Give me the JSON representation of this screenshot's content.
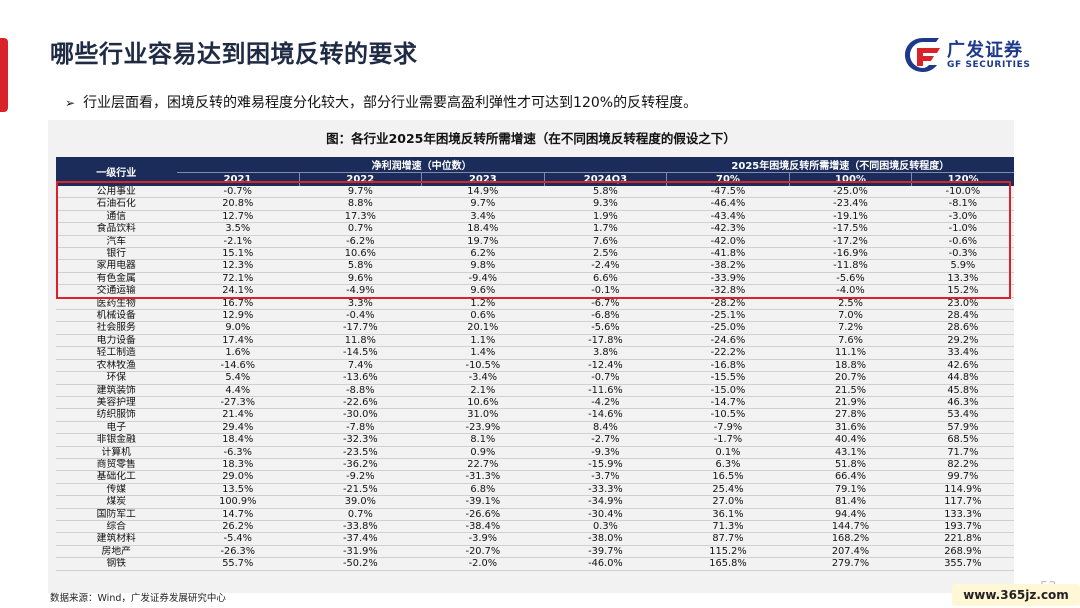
{
  "header": {
    "title": "哪些行业容易达到困境反转的要求",
    "logo_cn": "广发证券",
    "logo_en": "GF SECURITIES"
  },
  "bullet": {
    "marker": "➢",
    "text": "行业层面看，困境反转的难易程度分化较大，部分行业需要高盈利弹性才可达到120%的反转程度。"
  },
  "table": {
    "title": "图：各行业2025年困境反转所需增速（在不同困境反转程度的假设之下）",
    "col_industry": "一级行业",
    "group1": "净利润增速（中位数）",
    "group2": "2025年困境反转所需增速（不同困境反转程度）",
    "columns": [
      "2021",
      "2022",
      "2023",
      "2024Q3",
      "70%",
      "100%",
      "120%"
    ],
    "rows": [
      {
        "name": "公用事业",
        "values": [
          "-0.7%",
          "9.7%",
          "14.9%",
          "5.8%",
          "-47.5%",
          "-25.0%",
          "-10.0%"
        ]
      },
      {
        "name": "石油石化",
        "values": [
          "20.8%",
          "8.8%",
          "9.7%",
          "9.3%",
          "-46.4%",
          "-23.4%",
          "-8.1%"
        ]
      },
      {
        "name": "通信",
        "values": [
          "12.7%",
          "17.3%",
          "3.4%",
          "1.9%",
          "-43.4%",
          "-19.1%",
          "-3.0%"
        ]
      },
      {
        "name": "食品饮料",
        "values": [
          "3.5%",
          "0.7%",
          "18.4%",
          "1.7%",
          "-42.3%",
          "-17.5%",
          "-1.0%"
        ]
      },
      {
        "name": "汽车",
        "values": [
          "-2.1%",
          "-6.2%",
          "19.7%",
          "7.6%",
          "-42.0%",
          "-17.2%",
          "-0.6%"
        ]
      },
      {
        "name": "银行",
        "values": [
          "15.1%",
          "10.6%",
          "6.2%",
          "2.5%",
          "-41.8%",
          "-16.9%",
          "-0.3%"
        ]
      },
      {
        "name": "家用电器",
        "values": [
          "12.3%",
          "5.8%",
          "9.8%",
          "-2.4%",
          "-38.2%",
          "-11.8%",
          "5.9%"
        ]
      },
      {
        "name": "有色金属",
        "values": [
          "72.1%",
          "9.6%",
          "-9.4%",
          "6.6%",
          "-33.9%",
          "-5.6%",
          "13.3%"
        ]
      },
      {
        "name": "交通运输",
        "values": [
          "24.1%",
          "-4.9%",
          "9.6%",
          "-0.1%",
          "-32.8%",
          "-4.0%",
          "15.2%"
        ]
      },
      {
        "name": "医药生物",
        "values": [
          "16.7%",
          "3.3%",
          "1.2%",
          "-6.7%",
          "-28.2%",
          "2.5%",
          "23.0%"
        ]
      },
      {
        "name": "机械设备",
        "values": [
          "12.9%",
          "-0.4%",
          "0.6%",
          "-6.8%",
          "-25.1%",
          "7.0%",
          "28.4%"
        ]
      },
      {
        "name": "社会服务",
        "values": [
          "9.0%",
          "-17.7%",
          "20.1%",
          "-5.6%",
          "-25.0%",
          "7.2%",
          "28.6%"
        ]
      },
      {
        "name": "电力设备",
        "values": [
          "17.4%",
          "11.8%",
          "1.1%",
          "-17.8%",
          "-24.6%",
          "7.6%",
          "29.2%"
        ]
      },
      {
        "name": "轻工制造",
        "values": [
          "1.6%",
          "-14.5%",
          "1.4%",
          "3.8%",
          "-22.2%",
          "11.1%",
          "33.4%"
        ]
      },
      {
        "name": "农林牧渔",
        "values": [
          "-14.6%",
          "7.4%",
          "-10.5%",
          "-12.4%",
          "-16.8%",
          "18.8%",
          "42.6%"
        ]
      },
      {
        "name": "环保",
        "values": [
          "5.4%",
          "-13.6%",
          "-3.4%",
          "-0.7%",
          "-15.5%",
          "20.7%",
          "44.8%"
        ]
      },
      {
        "name": "建筑装饰",
        "values": [
          "4.4%",
          "-8.8%",
          "2.1%",
          "-11.6%",
          "-15.0%",
          "21.5%",
          "45.8%"
        ]
      },
      {
        "name": "美容护理",
        "values": [
          "-27.3%",
          "-22.6%",
          "10.6%",
          "-4.2%",
          "-14.7%",
          "21.9%",
          "46.3%"
        ]
      },
      {
        "name": "纺织服饰",
        "values": [
          "21.4%",
          "-30.0%",
          "31.0%",
          "-14.6%",
          "-10.5%",
          "27.8%",
          "53.4%"
        ]
      },
      {
        "name": "电子",
        "values": [
          "29.4%",
          "-7.8%",
          "-23.9%",
          "8.4%",
          "-7.9%",
          "31.6%",
          "57.9%"
        ]
      },
      {
        "name": "非银金融",
        "values": [
          "18.4%",
          "-32.3%",
          "8.1%",
          "-2.7%",
          "-1.7%",
          "40.4%",
          "68.5%"
        ]
      },
      {
        "name": "计算机",
        "values": [
          "-6.3%",
          "-23.5%",
          "0.9%",
          "-9.3%",
          "0.1%",
          "43.1%",
          "71.7%"
        ]
      },
      {
        "name": "商贸零售",
        "values": [
          "18.3%",
          "-36.2%",
          "22.7%",
          "-15.9%",
          "6.3%",
          "51.8%",
          "82.2%"
        ]
      },
      {
        "name": "基础化工",
        "values": [
          "29.0%",
          "-9.2%",
          "-31.3%",
          "-3.7%",
          "16.5%",
          "66.4%",
          "99.7%"
        ]
      },
      {
        "name": "传媒",
        "values": [
          "13.5%",
          "-21.5%",
          "6.8%",
          "-33.3%",
          "25.4%",
          "79.1%",
          "114.9%"
        ]
      },
      {
        "name": "煤炭",
        "values": [
          "100.9%",
          "39.0%",
          "-39.1%",
          "-34.9%",
          "27.0%",
          "81.4%",
          "117.7%"
        ]
      },
      {
        "name": "国防军工",
        "values": [
          "14.7%",
          "0.7%",
          "-26.6%",
          "-30.4%",
          "36.1%",
          "94.4%",
          "133.3%"
        ]
      },
      {
        "name": "综合",
        "values": [
          "26.2%",
          "-33.8%",
          "-38.4%",
          "0.3%",
          "71.3%",
          "144.7%",
          "193.7%"
        ]
      },
      {
        "name": "建筑材料",
        "values": [
          "-5.4%",
          "-37.4%",
          "-3.9%",
          "-38.0%",
          "87.7%",
          "168.2%",
          "221.8%"
        ]
      },
      {
        "name": "房地产",
        "values": [
          "-26.3%",
          "-31.9%",
          "-20.7%",
          "-39.7%",
          "115.2%",
          "207.4%",
          "268.9%"
        ]
      },
      {
        "name": "钢铁",
        "values": [
          "55.7%",
          "-50.2%",
          "-2.0%",
          "-46.0%",
          "165.8%",
          "279.7%",
          "355.7%"
        ]
      }
    ]
  },
  "footer": {
    "source": "数据来源：Wind，广发证券发展研究中心",
    "page_number": "53",
    "watermark": "www.365jz.com"
  },
  "colors": {
    "accent_red": "#d9232a",
    "header_navy": "#1b2c5b",
    "title_navy": "#1f2a44"
  }
}
